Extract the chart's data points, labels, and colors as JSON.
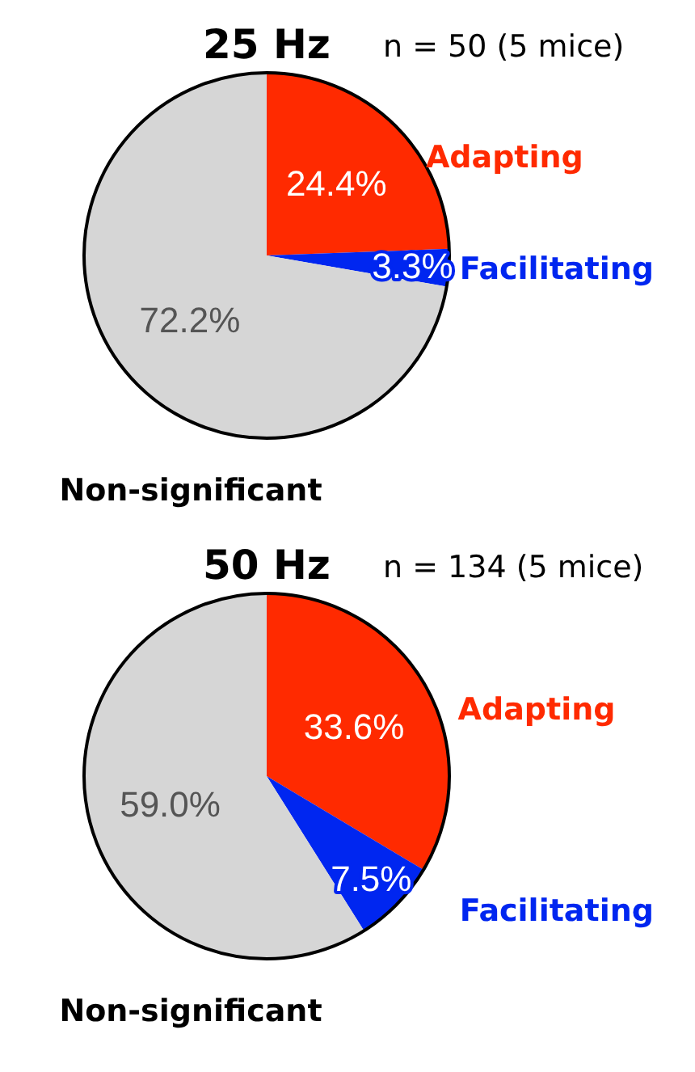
{
  "chart_data": [
    {
      "type": "pie",
      "title": "25 Hz",
      "subtitle": "n = 50 (5 mice)",
      "categories": [
        "Adapting",
        "Facilitating",
        "Non-significant"
      ],
      "values": [
        24.4,
        3.3,
        72.2
      ],
      "colors": [
        "#ff2a00",
        "#0026f0",
        "#d6d6d6"
      ],
      "value_labels": [
        "24.4%",
        "3.3%",
        "72.2%"
      ]
    },
    {
      "type": "pie",
      "title": "50 Hz",
      "subtitle": "n = 134 (5 mice)",
      "categories": [
        "Adapting",
        "Facilitating",
        "Non-significant"
      ],
      "values": [
        33.6,
        7.5,
        59.0
      ],
      "colors": [
        "#ff2a00",
        "#0026f0",
        "#d6d6d6"
      ],
      "value_labels": [
        "33.6%",
        "7.5%",
        "59.0%"
      ]
    }
  ]
}
